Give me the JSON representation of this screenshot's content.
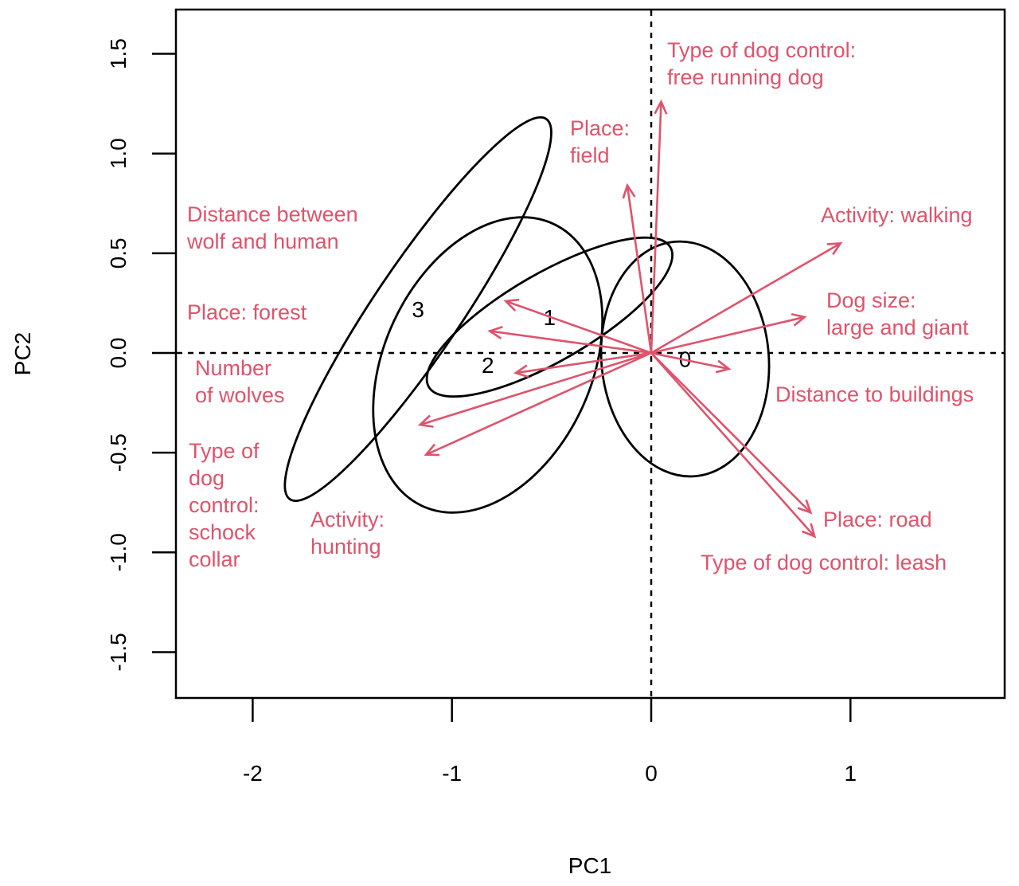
{
  "chart_data": {
    "type": "scatter",
    "subtype": "PCA biplot with group ellipses and loading arrows",
    "xlabel": "PC1",
    "ylabel": "PC2",
    "xlim": [
      -2.39,
      1.78
    ],
    "ylim": [
      -1.73,
      1.72
    ],
    "xticks": [
      -2,
      -1,
      0,
      1
    ],
    "yticks": [
      -1.5,
      -1.0,
      -0.5,
      0.0,
      0.5,
      1.0,
      1.5
    ],
    "xtick_labels": [
      "-2",
      "-1",
      "0",
      "1"
    ],
    "ytick_labels": [
      "-1.5",
      "-1.0",
      "-0.5",
      "0.0",
      "0.5",
      "1.0",
      "1.5"
    ],
    "reference_lines": {
      "x": 0,
      "y": 0,
      "style": "dotted"
    },
    "arrow_color": "#DF536B",
    "ellipse_color": "#000000",
    "groups": [
      {
        "label": "0",
        "center": [
          0.17,
          -0.03
        ],
        "semi_axes": [
          0.59,
          0.42
        ],
        "angle_deg": 95
      },
      {
        "label": "1",
        "center": [
          -0.51,
          0.18
        ],
        "semi_axes": [
          0.7,
          0.22
        ],
        "angle_deg": 30
      },
      {
        "label": "2",
        "center": [
          -0.82,
          -0.06
        ],
        "semi_axes": [
          0.78,
          0.52
        ],
        "angle_deg": 65
      },
      {
        "label": "3",
        "center": [
          -1.17,
          0.22
        ],
        "semi_axes": [
          1.15,
          0.22
        ],
        "angle_deg": 56
      }
    ],
    "loadings": [
      {
        "name": "Type of dog control: free running dog",
        "lines": [
          "Type of dog control:",
          "free running dog"
        ],
        "x": 0.05,
        "y": 1.26
      },
      {
        "name": "Place: field",
        "lines": [
          "Place:",
          "field"
        ],
        "x": -0.12,
        "y": 0.84
      },
      {
        "name": "Activity: walking",
        "lines": [
          "Activity: walking"
        ],
        "x": 0.95,
        "y": 0.55
      },
      {
        "name": "Dog size: large and giant",
        "lines": [
          "Dog size:",
          "large and giant"
        ],
        "x": 0.77,
        "y": 0.18
      },
      {
        "name": "Distance to buildings",
        "lines": [
          "Distance to buildings"
        ],
        "x": 0.39,
        "y": -0.08
      },
      {
        "name": "Place: road",
        "lines": [
          "Place: road"
        ],
        "x": 0.8,
        "y": -0.8
      },
      {
        "name": "Type of dog control: leash",
        "lines": [
          "Type of dog control: leash"
        ],
        "x": 0.82,
        "y": -0.92
      },
      {
        "name": "Distance between wolf and human",
        "lines": [
          "Distance between",
          "wolf and human"
        ],
        "x": -0.73,
        "y": 0.26
      },
      {
        "name": "Place: forest",
        "lines": [
          "Place: forest"
        ],
        "x": -0.81,
        "y": 0.11
      },
      {
        "name": "Number of wolves",
        "lines": [
          "Number",
          "of wolves"
        ],
        "x": -0.68,
        "y": -0.1
      },
      {
        "name": "Type of dog control: schock collar",
        "lines": [
          "Type of",
          "dog",
          "control:",
          "schock",
          "collar"
        ],
        "x": -1.16,
        "y": -0.36
      },
      {
        "name": "Activity: hunting",
        "lines": [
          "Activity:",
          "hunting"
        ],
        "x": -1.13,
        "y": -0.51
      }
    ]
  }
}
